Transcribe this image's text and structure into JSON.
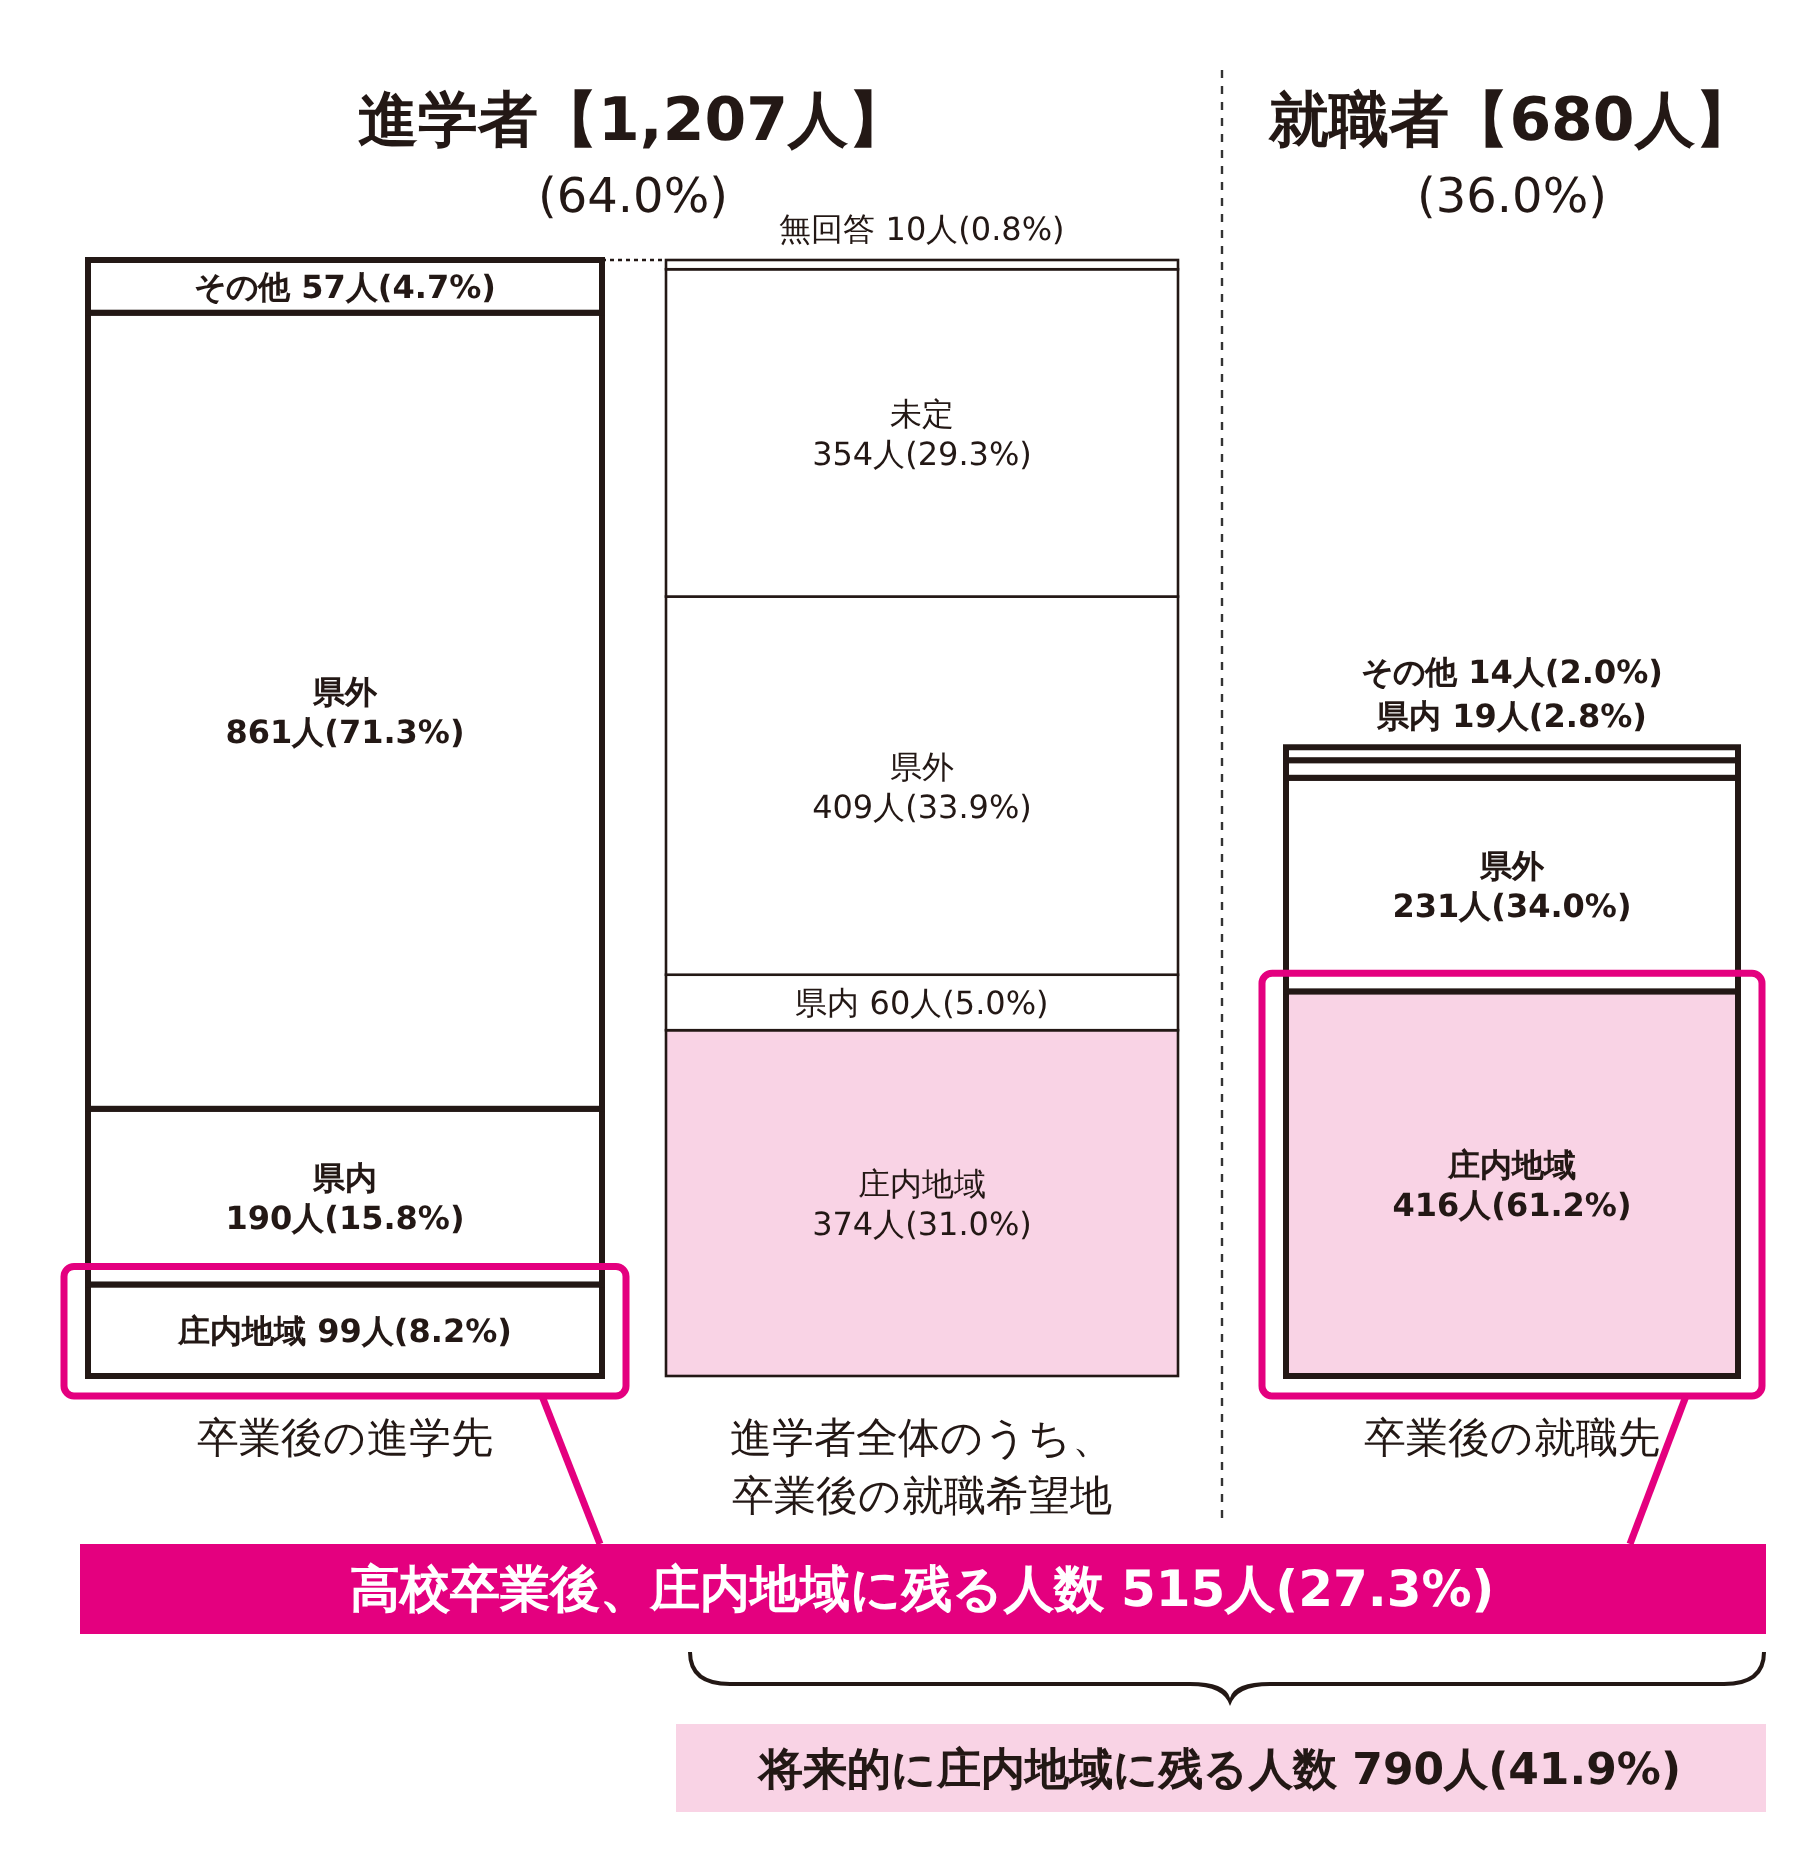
{
  "chart_data": {
    "type": "bar",
    "stacked": true,
    "categories": [
      "卒業後の進学先",
      "進学者全体のうち、卒業後の就職希望地",
      "卒業後の就職先"
    ],
    "series": [
      {
        "values": [
          99,
          374,
          416
        ],
        "colors": [
          "#ffffff",
          "#f9d3e5",
          "#f9d3e5"
        ],
        "value_labels": [
          "庄内地域 99人(8.2%)",
          "庄内地域 374人(31.0%)",
          "庄内地域 416人(61.2%)"
        ]
      },
      {
        "values": [
          190,
          60,
          231
        ],
        "colors": [
          "#ffffff",
          "#ffffff",
          "#ffffff"
        ],
        "value_labels": [
          "県内 190人(15.8%)",
          "県内 60人(5.0%)",
          "県外 231人(34.0%)"
        ]
      },
      {
        "values": [
          861,
          409,
          19
        ],
        "colors": [
          "#ffffff",
          "#ffffff",
          "#ffffff"
        ],
        "value_labels": [
          "県外 861人(71.3%)",
          "県外 409人(33.9%)",
          "県内 19人(2.8%)"
        ]
      },
      {
        "values": [
          57,
          354,
          14
        ],
        "colors": [
          "#ffffff",
          "#ffffff",
          "#ffffff"
        ],
        "value_labels": [
          "その他 57人(4.7%)",
          "未定 354人(29.3%)",
          "その他 14人(2.0%)"
        ]
      },
      {
        "values": [
          null,
          10,
          null
        ],
        "color": "#ffffff",
        "value_labels": [
          null,
          "無回答 10人(0.8%)",
          null
        ]
      }
    ],
    "annotations": [
      "進学者【1,207人】",
      "(64.0%)",
      "就職者【680人】",
      "(36.0%)",
      "高校卒業後、庄内地域に残る人数 515人(27.3%)",
      "将来的に庄内地域に残る人数 790人(41.9%)"
    ]
  }
}
